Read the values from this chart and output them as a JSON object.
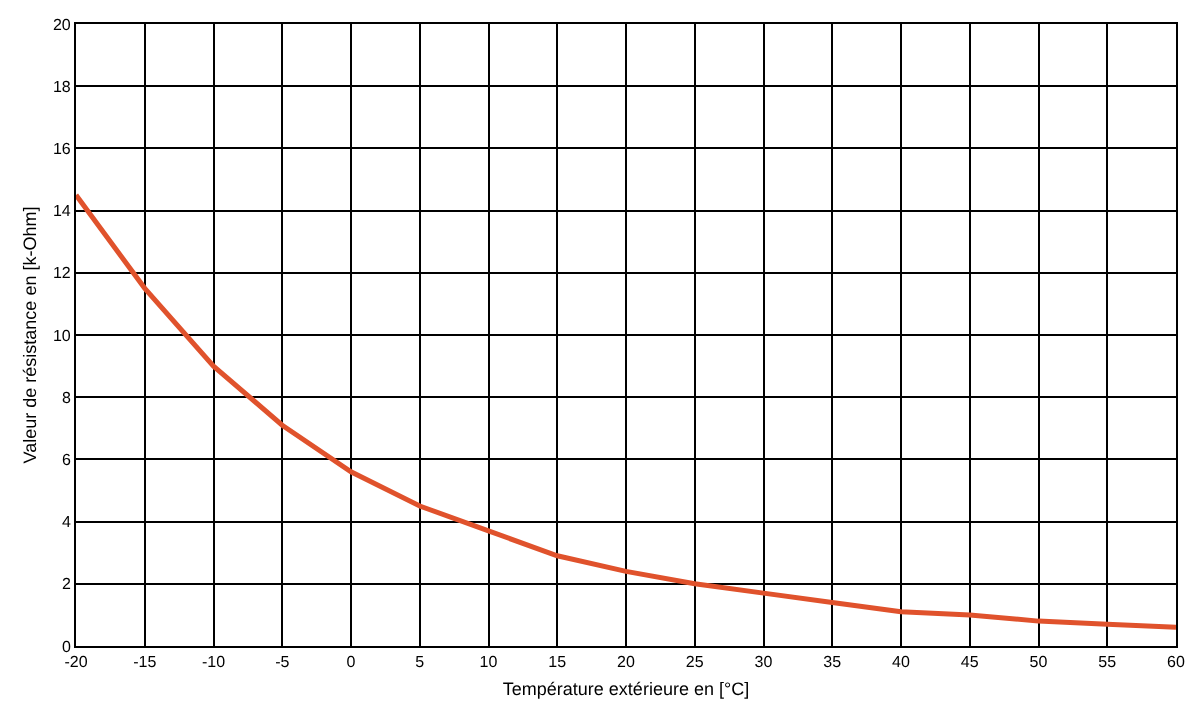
{
  "chart_data": {
    "type": "line",
    "xlabel": "Température extérieure en [°C]",
    "ylabel": "Valeur de résistance en [k-Ohm]",
    "x": [
      -20,
      -15,
      -10,
      -5,
      0,
      5,
      10,
      15,
      20,
      25,
      30,
      35,
      40,
      45,
      50,
      55,
      60
    ],
    "series": [
      {
        "color": "#e0522c",
        "values": [
          14.5,
          11.5,
          9.0,
          7.1,
          5.6,
          4.5,
          3.7,
          2.9,
          2.4,
          2.0,
          1.7,
          1.4,
          1.1,
          1.0,
          0.8,
          0.7,
          0.6
        ]
      }
    ],
    "xlim": [
      -20,
      60
    ],
    "xticks": [
      -20,
      -15,
      -10,
      -5,
      0,
      5,
      10,
      15,
      20,
      25,
      30,
      35,
      40,
      45,
      50,
      55,
      60
    ],
    "ylim": [
      0,
      20
    ],
    "yticks": [
      0,
      2,
      4,
      6,
      8,
      10,
      12,
      14,
      16,
      18,
      20
    ],
    "grid": true,
    "marker": "none",
    "line_style": "solid"
  }
}
